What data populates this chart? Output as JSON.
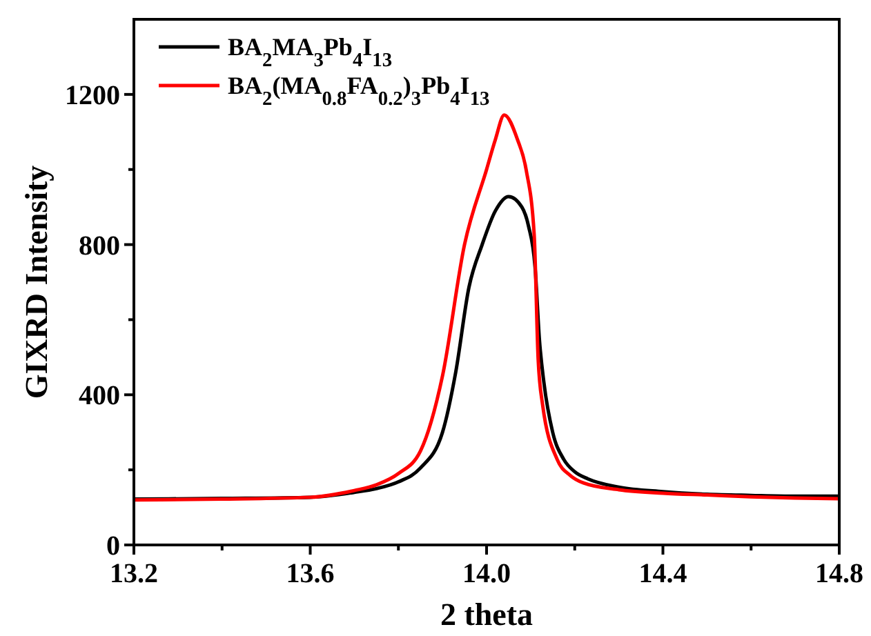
{
  "chart_data": {
    "type": "line",
    "xlabel": "2 theta",
    "ylabel": "GIXRD Intensity",
    "xlim": [
      13.2,
      14.8
    ],
    "ylim": [
      0,
      1400
    ],
    "xticks": [
      13.2,
      {
        "value": 13.4,
        "label": null
      },
      13.6,
      {
        "value": 13.8,
        "label": null
      },
      {
        "value": 14,
        "label": "14.0"
      },
      {
        "value": 14.2,
        "label": null
      },
      14.4,
      {
        "value": 14.6,
        "label": null
      },
      14.8
    ],
    "yticks": [
      0,
      {
        "value": 200,
        "label": null
      },
      400,
      {
        "value": 600,
        "label": null
      },
      800,
      {
        "value": 1000,
        "label": null
      },
      1200
    ],
    "legend": "top left",
    "grid": false,
    "line_style": "solid",
    "series": [
      {
        "name": "BA$_{2}$MA$_{3}$Pb$_{4}$I$_{13}$",
        "color": "#000000",
        "x": [
          13.2,
          13.4,
          13.6,
          13.7,
          13.75,
          13.8,
          13.85,
          13.9,
          13.93,
          13.96,
          13.99,
          14.02,
          14.05,
          14.08,
          14.095,
          14.11,
          14.12,
          14.13,
          14.15,
          14.175,
          14.2,
          14.23,
          14.3,
          14.4,
          14.5,
          14.6,
          14.7,
          14.8
        ],
        "values": [
          122,
          124,
          127,
          140,
          150,
          168,
          205,
          300,
          460,
          686,
          800,
          890,
          928,
          900,
          850,
          740,
          545,
          433,
          300,
          228,
          195,
          176,
          154,
          142,
          135,
          132,
          130,
          130
        ]
      },
      {
        "name": "BA$_{2}$(MA$_{0.8}$FA$_{0.2}$)$_{3}$Pb$_{4}$I$_{13}$",
        "color": "#ff0000",
        "x": [
          13.2,
          13.4,
          13.6,
          13.7,
          13.75,
          13.8,
          13.85,
          13.9,
          13.95,
          14.0,
          14.02,
          14.04,
          14.07,
          14.09,
          14.108,
          14.117,
          14.127,
          14.16,
          14.19,
          14.22,
          14.3,
          14.4,
          14.5,
          14.6,
          14.7,
          14.8
        ],
        "values": [
          120,
          122,
          127,
          145,
          160,
          190,
          250,
          450,
          800,
          1000,
          1080,
          1145,
          1080,
          998,
          826,
          495,
          374,
          228,
          185,
          165,
          147,
          138,
          133,
          128,
          125,
          123
        ]
      }
    ]
  }
}
